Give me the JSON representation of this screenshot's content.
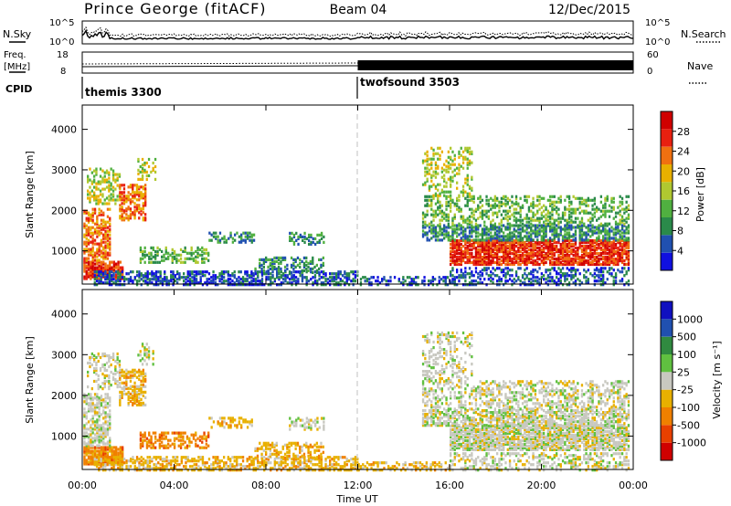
{
  "header": {
    "station": "Prince George (fitACF)",
    "beam": "Beam 04",
    "date": "12/Dec/2015"
  },
  "noise_panel": {
    "left_label": "N.Sky",
    "right_label": "N.Search",
    "ticks": [
      "10^5",
      "10^0"
    ]
  },
  "freq_panel": {
    "left_label_1": "Freq.",
    "left_label_2": "[MHz]",
    "left_ticks": [
      "18",
      "8"
    ],
    "right_label": "Nave",
    "right_ticks": [
      "60",
      "0"
    ]
  },
  "cpid": {
    "label": "CPID",
    "modes": [
      {
        "name": "themis 3300",
        "start_hour": 0
      },
      {
        "name": "twofsound 3503",
        "start_hour": 12
      }
    ]
  },
  "colors": {
    "power": [
      "#1010e0",
      "#2050b0",
      "#2a8a4a",
      "#50b040",
      "#b0c830",
      "#e8b000",
      "#f07010",
      "#e82010",
      "#d00000"
    ],
    "velocity": [
      "#1010c0",
      "#2050b0",
      "#308a40",
      "#60c040",
      "#c8c8c0",
      "#e8b000",
      "#f08000",
      "#e84000",
      "#d00000"
    ],
    "noise_line": "#000000",
    "axis": "#000000",
    "guide": "#bbbbbb"
  },
  "chart_data": [
    {
      "type": "heatmap",
      "name_of_quantity": "Power",
      "ylabel": "Slant Range [km]",
      "y_ticks": [
        1000,
        2000,
        3000,
        4000
      ],
      "ylim": [
        180,
        4600
      ],
      "xlim": [
        0,
        24
      ],
      "colorbar_label": "Power [dB]",
      "colorbar_ticks": [
        "4",
        "8",
        "12",
        "16",
        "20",
        "24",
        "28"
      ],
      "colorbar_range": [
        0,
        30
      ]
    },
    {
      "type": "heatmap",
      "name_of_quantity": "Velocity",
      "ylabel": "Slant Range [km]",
      "y_ticks": [
        1000,
        2000,
        3000,
        4000
      ],
      "ylim": [
        180,
        4600
      ],
      "xlim": [
        0,
        24
      ],
      "colorbar_label": "Velocity [m s⁻¹]",
      "colorbar_ticks": [
        "1000",
        "500",
        "100",
        "25",
        "-25",
        "-100",
        "-500",
        "-1000"
      ],
      "xlabel": "Time UT",
      "x_ticks": [
        "00:00",
        "04:00",
        "08:00",
        "12:00",
        "16:00",
        "20:00",
        "00:00"
      ]
    }
  ]
}
